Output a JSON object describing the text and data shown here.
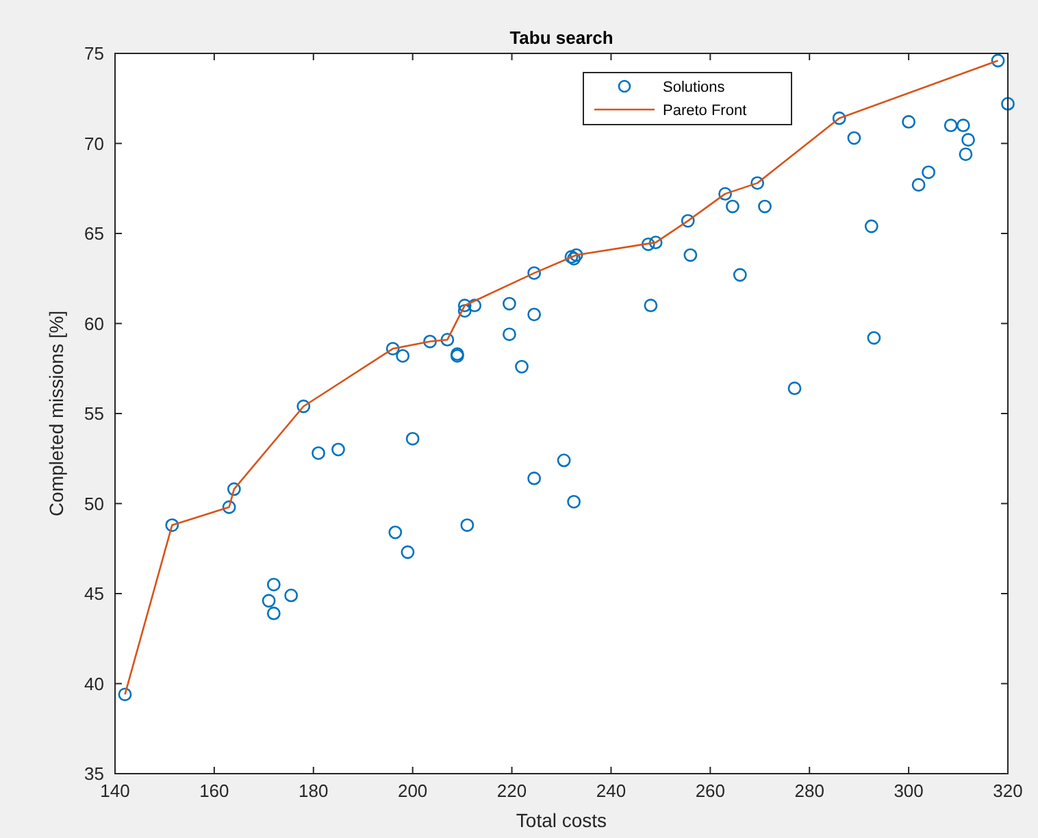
{
  "chart_data": {
    "type": "scatter",
    "title": "Tabu search",
    "xlabel": "Total costs",
    "ylabel": "Completed missions [%]",
    "xlim": [
      140,
      320
    ],
    "ylim": [
      35,
      75
    ],
    "xticks": [
      140,
      160,
      180,
      200,
      220,
      240,
      260,
      280,
      300,
      320
    ],
    "yticks": [
      35,
      40,
      45,
      50,
      55,
      60,
      65,
      70,
      75
    ],
    "grid": false,
    "legend": "top right",
    "series": [
      {
        "name": "Solutions",
        "marker": "circle",
        "color": "#0072bd",
        "x": [
          142,
          151.5,
          163,
          164,
          178,
          181,
          185,
          171,
          172,
          172,
          175.5,
          196,
          198,
          200,
          196.5,
          199,
          203.5,
          207,
          209,
          209,
          210.5,
          210.5,
          212.5,
          211,
          219.5,
          219.5,
          222,
          224.5,
          224.5,
          224.5,
          230.5,
          232.5,
          232,
          232.5,
          233,
          247.5,
          249,
          248,
          255.5,
          256,
          263,
          264.5,
          266,
          269.5,
          271,
          277,
          286,
          289,
          292.5,
          293,
          300,
          302,
          304,
          308.5,
          311,
          312,
          311.5,
          318,
          320
        ],
        "values": [
          39.4,
          48.8,
          49.8,
          50.8,
          55.4,
          52.8,
          53.0,
          44.6,
          45.5,
          43.9,
          44.9,
          58.6,
          58.2,
          53.6,
          48.4,
          47.3,
          59.0,
          59.1,
          58.2,
          58.3,
          60.7,
          61.0,
          61.0,
          48.8,
          61.1,
          59.4,
          57.6,
          62.8,
          60.5,
          51.4,
          52.4,
          50.1,
          63.7,
          63.6,
          63.8,
          64.4,
          64.5,
          61.0,
          65.7,
          63.8,
          67.2,
          66.5,
          62.7,
          67.8,
          66.5,
          56.4,
          71.4,
          70.3,
          65.4,
          59.2,
          71.2,
          67.7,
          68.4,
          71.0,
          71.0,
          70.2,
          69.4,
          74.6,
          72.2
        ]
      },
      {
        "name": "Pareto Front",
        "type": "line",
        "marker": "none",
        "line_style": "solid",
        "color": "#d95319",
        "x": [
          142,
          151.5,
          163,
          164,
          178,
          196,
          203.5,
          207,
          210.5,
          224.5,
          233,
          249,
          255.5,
          263,
          269.5,
          286,
          318
        ],
        "values": [
          39.4,
          48.8,
          49.8,
          50.8,
          55.4,
          58.6,
          59.0,
          59.1,
          61.0,
          62.8,
          63.8,
          64.5,
          65.7,
          67.2,
          67.8,
          71.4,
          74.6
        ]
      }
    ]
  }
}
